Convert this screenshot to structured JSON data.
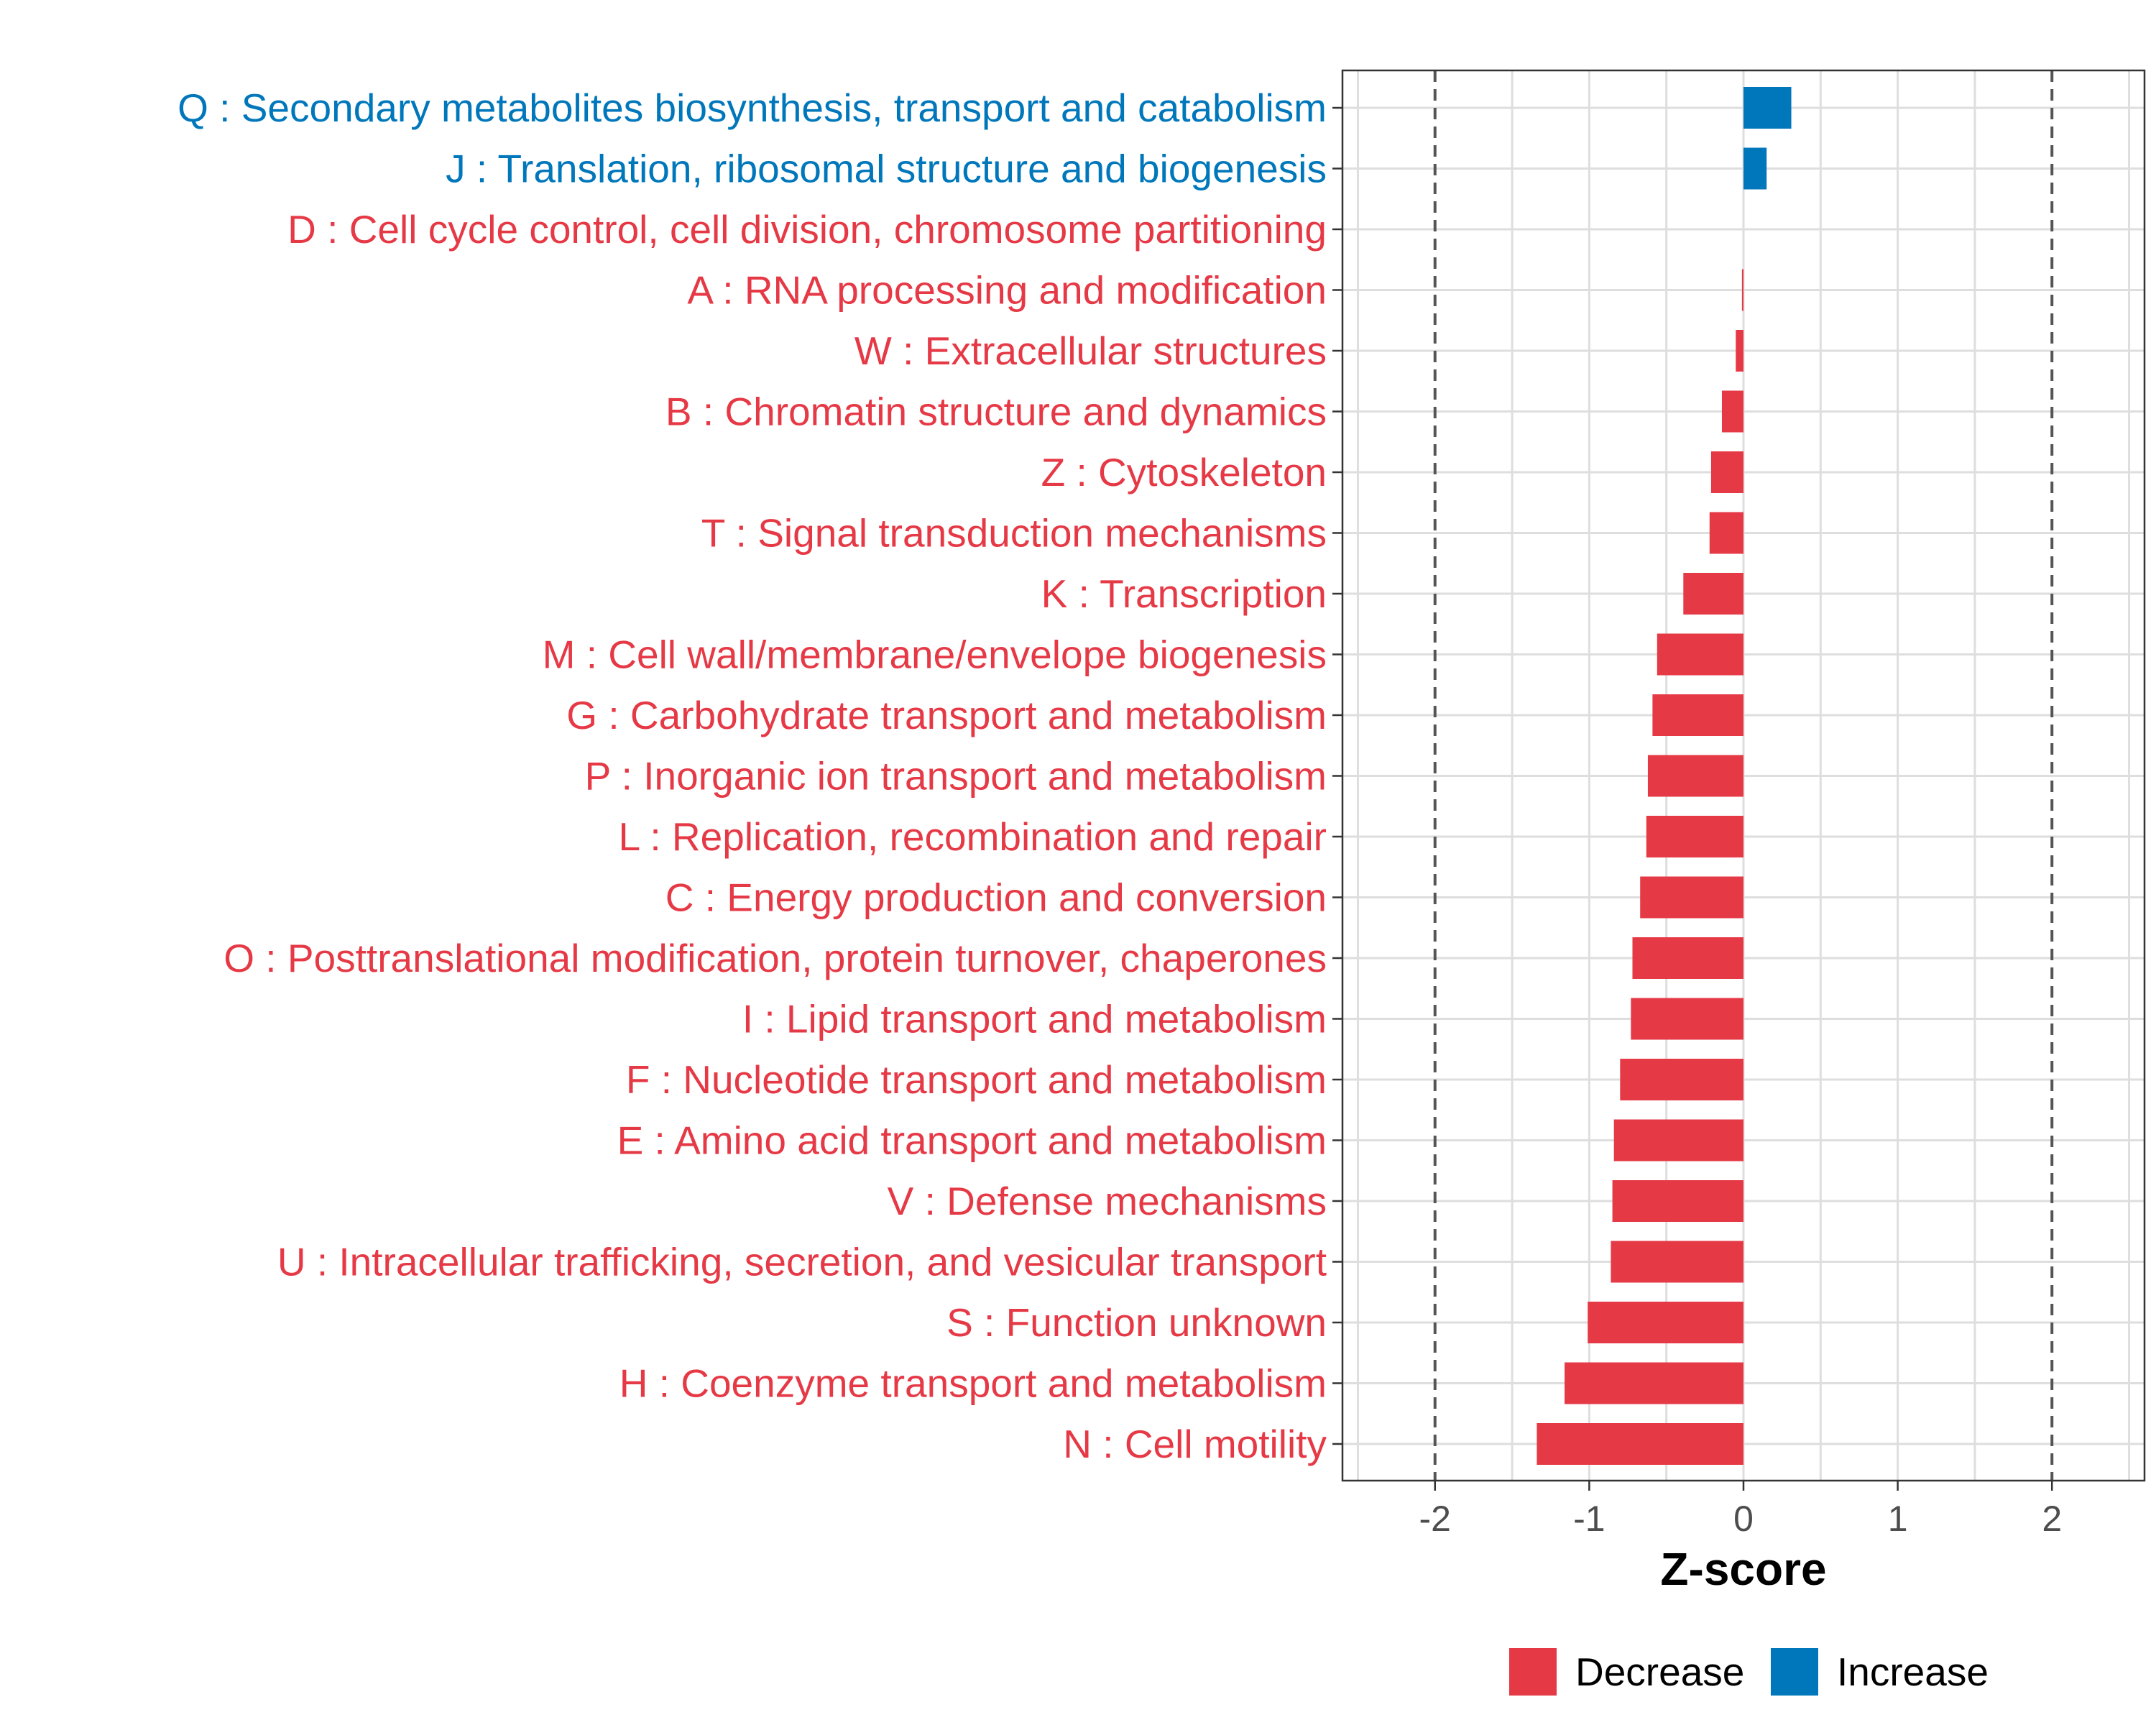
{
  "chart_data": {
    "type": "bar",
    "orientation": "horizontal",
    "title": "",
    "xlabel": "Z-score",
    "ylabel": "",
    "xlim": [
      -2.6,
      2.6
    ],
    "xticks": [
      -2,
      -1,
      0,
      1,
      2
    ],
    "reference_lines": [
      -2,
      2
    ],
    "grid": true,
    "legend_position": "bottom",
    "categories": [
      "Q : Secondary metabolites biosynthesis, transport and catabolism",
      "J : Translation, ribosomal structure and biogenesis",
      "D : Cell cycle control, cell division, chromosome partitioning",
      "A : RNA processing and modification",
      "W : Extracellular structures",
      "B : Chromatin structure and dynamics",
      "Z : Cytoskeleton",
      "T : Signal transduction mechanisms",
      "K : Transcription",
      "M : Cell wall/membrane/envelope biogenesis",
      "G : Carbohydrate transport and metabolism",
      "P : Inorganic ion transport and metabolism",
      "L : Replication, recombination and repair",
      "C : Energy production and conversion",
      "O : Posttranslational modification, protein turnover, chaperones",
      "I : Lipid transport and metabolism",
      "F : Nucleotide transport and metabolism",
      "E : Amino acid transport and metabolism",
      "V : Defense mechanisms",
      "U : Intracellular trafficking, secretion, and vesicular transport",
      "S : Function unknown",
      "H : Coenzyme transport and metabolism",
      "N : Cell motility"
    ],
    "values": [
      0.31,
      0.15,
      0.0,
      -0.01,
      -0.05,
      -0.14,
      -0.21,
      -0.22,
      -0.39,
      -0.56,
      -0.59,
      -0.62,
      -0.63,
      -0.67,
      -0.72,
      -0.73,
      -0.8,
      -0.84,
      -0.85,
      -0.86,
      -1.01,
      -1.16,
      -1.34
    ],
    "groups": [
      "Increase",
      "Increase",
      "Decrease",
      "Decrease",
      "Decrease",
      "Decrease",
      "Decrease",
      "Decrease",
      "Decrease",
      "Decrease",
      "Decrease",
      "Decrease",
      "Decrease",
      "Decrease",
      "Decrease",
      "Decrease",
      "Decrease",
      "Decrease",
      "Decrease",
      "Decrease",
      "Decrease",
      "Decrease",
      "Decrease"
    ],
    "legend": [
      {
        "name": "Decrease",
        "color": "#E63946"
      },
      {
        "name": "Increase",
        "color": "#0077BB"
      }
    ]
  }
}
